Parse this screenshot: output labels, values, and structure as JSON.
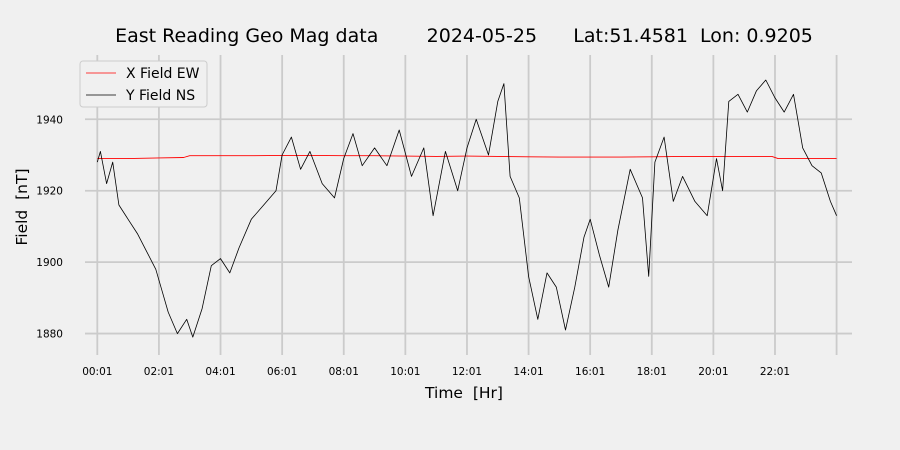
{
  "chart_data": {
    "type": "line",
    "title": "East Reading Geo Mag data        2024-05-25      Lat:51.4581  Lon: 0.9205",
    "xlabel": "Time  [Hr]",
    "ylabel": "Field  [nT]",
    "xlim": [
      -0.4,
      24.5
    ],
    "ylim": [
      1874,
      1958
    ],
    "x_ticks": [
      {
        "value": 0.0,
        "label": "00:01"
      },
      {
        "value": 2.0,
        "label": "02:01"
      },
      {
        "value": 4.0,
        "label": "04:01"
      },
      {
        "value": 6.0,
        "label": "06:01"
      },
      {
        "value": 8.0,
        "label": "08:01"
      },
      {
        "value": 10.0,
        "label": "10:01"
      },
      {
        "value": 12.0,
        "label": "12:01"
      },
      {
        "value": 14.0,
        "label": "14:01"
      },
      {
        "value": 16.0,
        "label": "16:01"
      },
      {
        "value": 18.0,
        "label": "18:01"
      },
      {
        "value": 20.0,
        "label": "20:01"
      },
      {
        "value": 22.0,
        "label": "22:01"
      },
      {
        "value": 24.0,
        "label": ""
      }
    ],
    "y_ticks": [
      {
        "value": 1880,
        "label": "1880"
      },
      {
        "value": 1900,
        "label": "1900"
      },
      {
        "value": 1920,
        "label": "1920"
      },
      {
        "value": 1940,
        "label": "1940"
      }
    ],
    "grid": true,
    "legend": "top-left",
    "series": [
      {
        "name": "X Field EW",
        "color": "#ff0000",
        "x": [
          0,
          1,
          2,
          2.8,
          3,
          4,
          5,
          6,
          7,
          8,
          9,
          10,
          11,
          12,
          13,
          14,
          15,
          16,
          17,
          18,
          19,
          20,
          21,
          21.9,
          22.1,
          23,
          24
        ],
        "y": [
          1929,
          1929,
          1929.2,
          1929.3,
          1929.8,
          1929.8,
          1929.8,
          1929.9,
          1929.9,
          1929.8,
          1929.8,
          1929.7,
          1929.6,
          1929.7,
          1929.6,
          1929.5,
          1929.4,
          1929.4,
          1929.4,
          1929.5,
          1929.6,
          1929.6,
          1929.6,
          1929.6,
          1929.0,
          1929.0,
          1929.0
        ]
      },
      {
        "name": "Y Field NS",
        "color": "#000000",
        "x": [
          0,
          0.1,
          0.3,
          0.5,
          0.7,
          1.0,
          1.3,
          1.6,
          1.9,
          2.1,
          2.3,
          2.6,
          2.9,
          3.1,
          3.4,
          3.7,
          4.0,
          4.3,
          4.6,
          5.0,
          5.4,
          5.8,
          6.0,
          6.3,
          6.6,
          6.9,
          7.3,
          7.7,
          8.0,
          8.3,
          8.6,
          9.0,
          9.4,
          9.8,
          10.2,
          10.6,
          10.9,
          11.3,
          11.7,
          12.0,
          12.3,
          12.7,
          13.0,
          13.2,
          13.4,
          13.7,
          14.0,
          14.3,
          14.6,
          14.9,
          15.2,
          15.5,
          15.8,
          16.0,
          16.3,
          16.6,
          16.9,
          17.3,
          17.7,
          17.9,
          18.1,
          18.4,
          18.7,
          19.0,
          19.4,
          19.8,
          20.1,
          20.3,
          20.5,
          20.8,
          21.1,
          21.4,
          21.7,
          22.0,
          22.3,
          22.6,
          22.9,
          23.2,
          23.5,
          23.8,
          24.0
        ],
        "y": [
          1928,
          1931,
          1922,
          1928,
          1916,
          1912,
          1908,
          1903,
          1898,
          1892,
          1886,
          1880,
          1884,
          1879,
          1887,
          1899,
          1901,
          1897,
          1904,
          1912,
          1916,
          1920,
          1930,
          1935,
          1926,
          1931,
          1922,
          1918,
          1929,
          1936,
          1927,
          1932,
          1927,
          1937,
          1924,
          1932,
          1913,
          1931,
          1920,
          1932,
          1940,
          1930,
          1945,
          1950,
          1924,
          1918,
          1896,
          1884,
          1897,
          1893,
          1881,
          1893,
          1907,
          1912,
          1902,
          1893,
          1909,
          1926,
          1918,
          1896,
          1928,
          1935,
          1917,
          1924,
          1917,
          1913,
          1929,
          1920,
          1945,
          1947,
          1942,
          1948,
          1951,
          1946,
          1942,
          1947,
          1932,
          1927,
          1925,
          1917,
          1913
        ]
      }
    ]
  }
}
